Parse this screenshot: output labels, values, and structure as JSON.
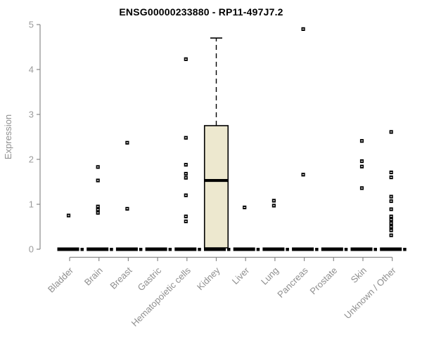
{
  "chart_data": {
    "type": "boxplot",
    "title": "ENSG00000233880 - RP11-497J7.2",
    "ylabel": "Expression",
    "xlabel": "",
    "ylim": [
      0,
      5
    ],
    "yticks": [
      0,
      1,
      2,
      3,
      4,
      5
    ],
    "grid": false,
    "legend": "none",
    "categories": [
      "Bladder",
      "Brain",
      "Breast",
      "Gastric",
      "Hematopoietic cells",
      "Kidney",
      "Liver",
      "Lung",
      "Pancreas",
      "Prostate",
      "Skin",
      "Unknown / Other"
    ],
    "series": [
      {
        "name": "Bladder",
        "median": 0,
        "q1": 0,
        "q3": 0,
        "whisker_low": 0,
        "whisker_high": 0,
        "points": [
          0.75
        ]
      },
      {
        "name": "Brain",
        "median": 0,
        "q1": 0,
        "q3": 0,
        "whisker_low": 0,
        "whisker_high": 0,
        "points": [
          1.83,
          1.53,
          0.95,
          0.88,
          0.81
        ]
      },
      {
        "name": "Breast",
        "median": 0,
        "q1": 0,
        "q3": 0,
        "whisker_low": 0,
        "whisker_high": 0,
        "points": [
          2.37,
          0.9
        ]
      },
      {
        "name": "Gastric",
        "median": 0,
        "q1": 0,
        "q3": 0,
        "whisker_low": 0,
        "whisker_high": 0,
        "points": []
      },
      {
        "name": "Hematopoietic cells",
        "median": 0,
        "q1": 0,
        "q3": 0,
        "whisker_low": 0,
        "whisker_high": 0,
        "points": [
          4.23,
          2.48,
          1.88,
          1.68,
          1.59,
          1.2,
          0.73,
          0.62
        ]
      },
      {
        "name": "Kidney",
        "median": 1.53,
        "q1": 0.03,
        "q3": 2.75,
        "whisker_low": 0,
        "whisker_high": 4.7,
        "points": []
      },
      {
        "name": "Liver",
        "median": 0,
        "q1": 0,
        "q3": 0,
        "whisker_low": 0,
        "whisker_high": 0,
        "points": [
          0.93
        ]
      },
      {
        "name": "Lung",
        "median": 0,
        "q1": 0,
        "q3": 0,
        "whisker_low": 0,
        "whisker_high": 0,
        "points": [
          1.08,
          0.97
        ]
      },
      {
        "name": "Pancreas",
        "median": 0,
        "q1": 0,
        "q3": 0,
        "whisker_low": 0,
        "whisker_high": 0,
        "points": [
          4.9,
          1.66
        ]
      },
      {
        "name": "Prostate",
        "median": 0,
        "q1": 0,
        "q3": 0,
        "whisker_low": 0,
        "whisker_high": 0,
        "points": []
      },
      {
        "name": "Skin",
        "median": 0,
        "q1": 0,
        "q3": 0,
        "whisker_low": 0,
        "whisker_high": 0,
        "points": [
          2.41,
          1.96,
          1.84,
          1.36
        ]
      },
      {
        "name": "Unknown / Other",
        "median": 0,
        "q1": 0,
        "q3": 0,
        "whisker_low": 0,
        "whisker_high": 0,
        "points": [
          2.61,
          1.71,
          1.6,
          1.17,
          1.07,
          0.89,
          0.73,
          0.66,
          0.58,
          0.5,
          0.42,
          0.31
        ]
      }
    ],
    "colors": {
      "box_fill": "#ede8cf",
      "box_stroke": "#000000",
      "median": "#000000",
      "point": "#000000",
      "axis": "#8a8a8a",
      "tick_label": "#9b9b9b",
      "title": "#000000"
    }
  }
}
